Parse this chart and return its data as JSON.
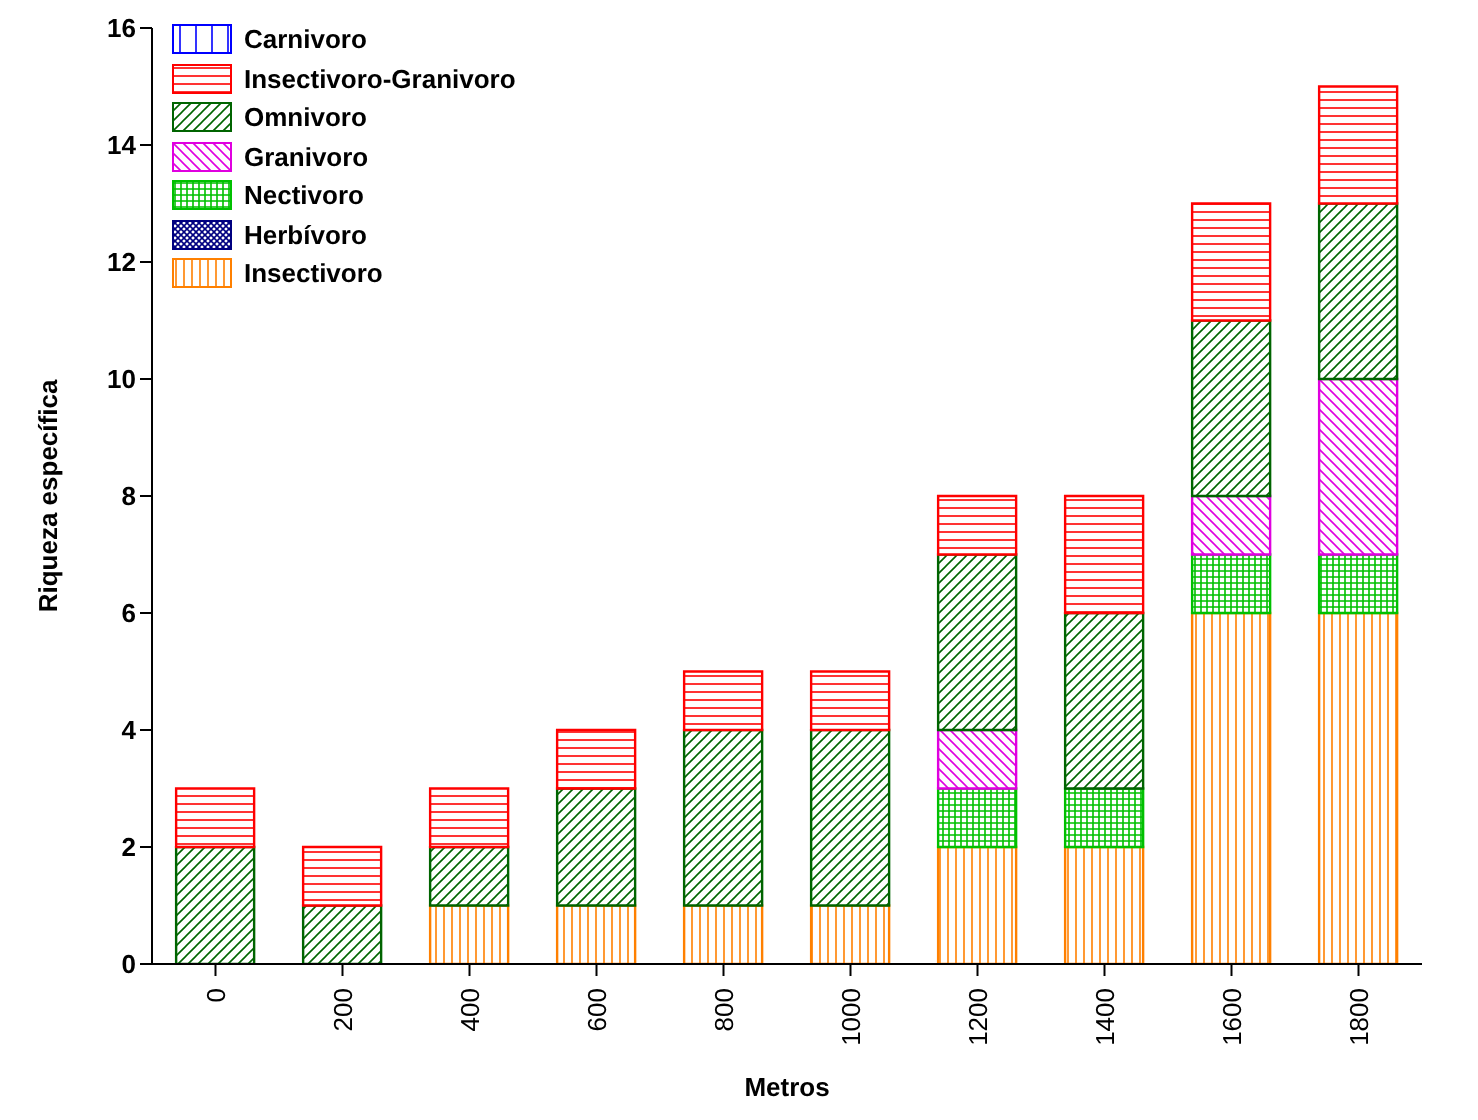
{
  "chart_data": {
    "type": "bar",
    "stacked": true,
    "xlabel": "Metros",
    "ylabel": "Riqueza específica",
    "categories": [
      "0",
      "200",
      "400",
      "600",
      "800",
      "1000",
      "1200",
      "1400",
      "1600",
      "1800"
    ],
    "ylim": [
      0,
      16
    ],
    "yticks": [
      0,
      2,
      4,
      6,
      8,
      10,
      12,
      14,
      16
    ],
    "grid": false,
    "legend": "top left",
    "series": [
      {
        "name": "Insectivoro",
        "color": "#ff8000",
        "values": [
          0,
          0,
          1,
          1,
          1,
          1,
          2,
          2,
          6,
          6
        ]
      },
      {
        "name": "Herbívoro",
        "color": "#000080",
        "values": [
          0,
          0,
          0,
          0,
          0,
          0,
          0,
          0,
          0,
          0
        ]
      },
      {
        "name": "Nectivoro",
        "color": "#00c000",
        "values": [
          0,
          0,
          0,
          0,
          0,
          0,
          1,
          1,
          1,
          1
        ]
      },
      {
        "name": "Granivoro",
        "color": "#e000e0",
        "values": [
          0,
          0,
          0,
          0,
          0,
          0,
          1,
          0,
          1,
          3
        ]
      },
      {
        "name": "Omnivoro",
        "color": "#006400",
        "values": [
          2,
          1,
          1,
          2,
          3,
          3,
          3,
          3,
          3,
          3
        ]
      },
      {
        "name": "Insectivoro-Granivoro",
        "color": "#ff0000",
        "values": [
          1,
          1,
          1,
          1,
          1,
          1,
          1,
          2,
          2,
          2
        ]
      },
      {
        "name": "Carnivoro",
        "color": "#0000ff",
        "values": [
          0,
          0,
          0,
          0,
          0,
          0,
          0,
          0,
          0,
          0
        ]
      }
    ]
  }
}
